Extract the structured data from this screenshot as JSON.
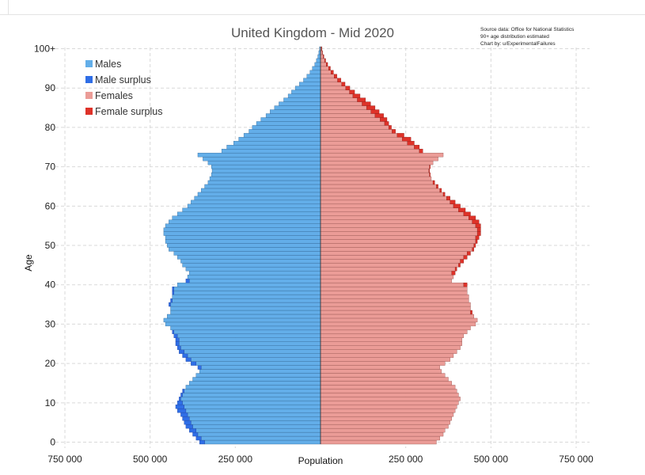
{
  "chart_data": {
    "type": "bar",
    "orientation": "horizontal-population-pyramid",
    "title": "United Kingdom - Mid 2020",
    "notes": [
      "Source data: Office for National Statistics",
      "90+ age distribution estimated",
      "Chart by: u/ExperimentalFailures"
    ],
    "xlabel": "Population",
    "ylabel": "Age",
    "xlim": [
      -750000,
      750000
    ],
    "x_ticks": [
      -750000,
      -500000,
      -250000,
      0,
      250000,
      500000,
      750000
    ],
    "x_tick_labels": [
      "750 000",
      "500 000",
      "250 000",
      "",
      "250 000",
      "500 000",
      "750 000"
    ],
    "y_ticks": [
      0,
      10,
      20,
      30,
      40,
      50,
      60,
      70,
      80,
      90,
      100
    ],
    "y_tick_labels": [
      "0",
      "10",
      "20",
      "30",
      "40",
      "50",
      "60",
      "70",
      "80",
      "90",
      "100+"
    ],
    "grid": true,
    "legend_position": "top-left",
    "legend": [
      {
        "label": "Males",
        "color": "#63aee9"
      },
      {
        "label": "Male surplus",
        "color": "#2f6ee6"
      },
      {
        "label": "Females",
        "color": "#eb9c97"
      },
      {
        "label": "Female surplus",
        "color": "#de3229"
      }
    ],
    "ages": [
      0,
      1,
      2,
      3,
      4,
      5,
      6,
      7,
      8,
      9,
      10,
      11,
      12,
      13,
      14,
      15,
      16,
      17,
      18,
      19,
      20,
      21,
      22,
      23,
      24,
      25,
      26,
      27,
      28,
      29,
      30,
      31,
      32,
      33,
      34,
      35,
      36,
      37,
      38,
      39,
      40,
      41,
      42,
      43,
      44,
      45,
      46,
      47,
      48,
      49,
      50,
      51,
      52,
      53,
      54,
      55,
      56,
      57,
      58,
      59,
      60,
      61,
      62,
      63,
      64,
      65,
      66,
      67,
      68,
      69,
      70,
      71,
      72,
      73,
      74,
      75,
      76,
      77,
      78,
      79,
      80,
      81,
      82,
      83,
      84,
      85,
      86,
      87,
      88,
      89,
      90,
      91,
      92,
      93,
      94,
      95,
      96,
      97,
      98,
      99,
      100
    ],
    "series": [
      {
        "name": "Males",
        "values": [
          355000,
          365000,
          375000,
          385000,
          395000,
          400000,
          405000,
          410000,
          420000,
          425000,
          420000,
          415000,
          410000,
          405000,
          395000,
          385000,
          375000,
          365000,
          355000,
          360000,
          380000,
          395000,
          405000,
          415000,
          420000,
          425000,
          425000,
          430000,
          435000,
          440000,
          455000,
          460000,
          450000,
          440000,
          440000,
          445000,
          440000,
          435000,
          435000,
          435000,
          420000,
          395000,
          390000,
          385000,
          395000,
          405000,
          410000,
          420000,
          430000,
          445000,
          450000,
          455000,
          455000,
          460000,
          460000,
          455000,
          445000,
          435000,
          420000,
          405000,
          390000,
          380000,
          370000,
          360000,
          350000,
          340000,
          330000,
          325000,
          320000,
          318000,
          320000,
          330000,
          345000,
          360000,
          290000,
          275000,
          255000,
          240000,
          225000,
          210000,
          200000,
          188000,
          175000,
          160000,
          148000,
          135000,
          122000,
          108000,
          95000,
          85000,
          74000,
          62000,
          50000,
          40000,
          31000,
          24000,
          17000,
          12000,
          8000,
          5000,
          3000
        ]
      },
      {
        "name": "Females",
        "values": [
          340000,
          350000,
          360000,
          365000,
          375000,
          380000,
          385000,
          390000,
          395000,
          400000,
          405000,
          410000,
          405000,
          400000,
          395000,
          385000,
          375000,
          365000,
          355000,
          350000,
          365000,
          380000,
          390000,
          400000,
          410000,
          415000,
          415000,
          420000,
          430000,
          440000,
          455000,
          460000,
          450000,
          445000,
          440000,
          440000,
          435000,
          435000,
          430000,
          430000,
          430000,
          385000,
          390000,
          395000,
          400000,
          410000,
          420000,
          430000,
          440000,
          450000,
          455000,
          460000,
          465000,
          470000,
          470000,
          470000,
          465000,
          455000,
          440000,
          425000,
          410000,
          395000,
          380000,
          365000,
          355000,
          345000,
          335000,
          325000,
          322000,
          320000,
          322000,
          330000,
          345000,
          360000,
          300000,
          290000,
          275000,
          265000,
          245000,
          220000,
          208000,
          200000,
          195000,
          185000,
          172000,
          160000,
          147000,
          132000,
          116000,
          100000,
          86000,
          72000,
          60000,
          48000,
          38000,
          29000,
          21000,
          15000,
          10000,
          6000,
          4000
        ]
      }
    ]
  }
}
